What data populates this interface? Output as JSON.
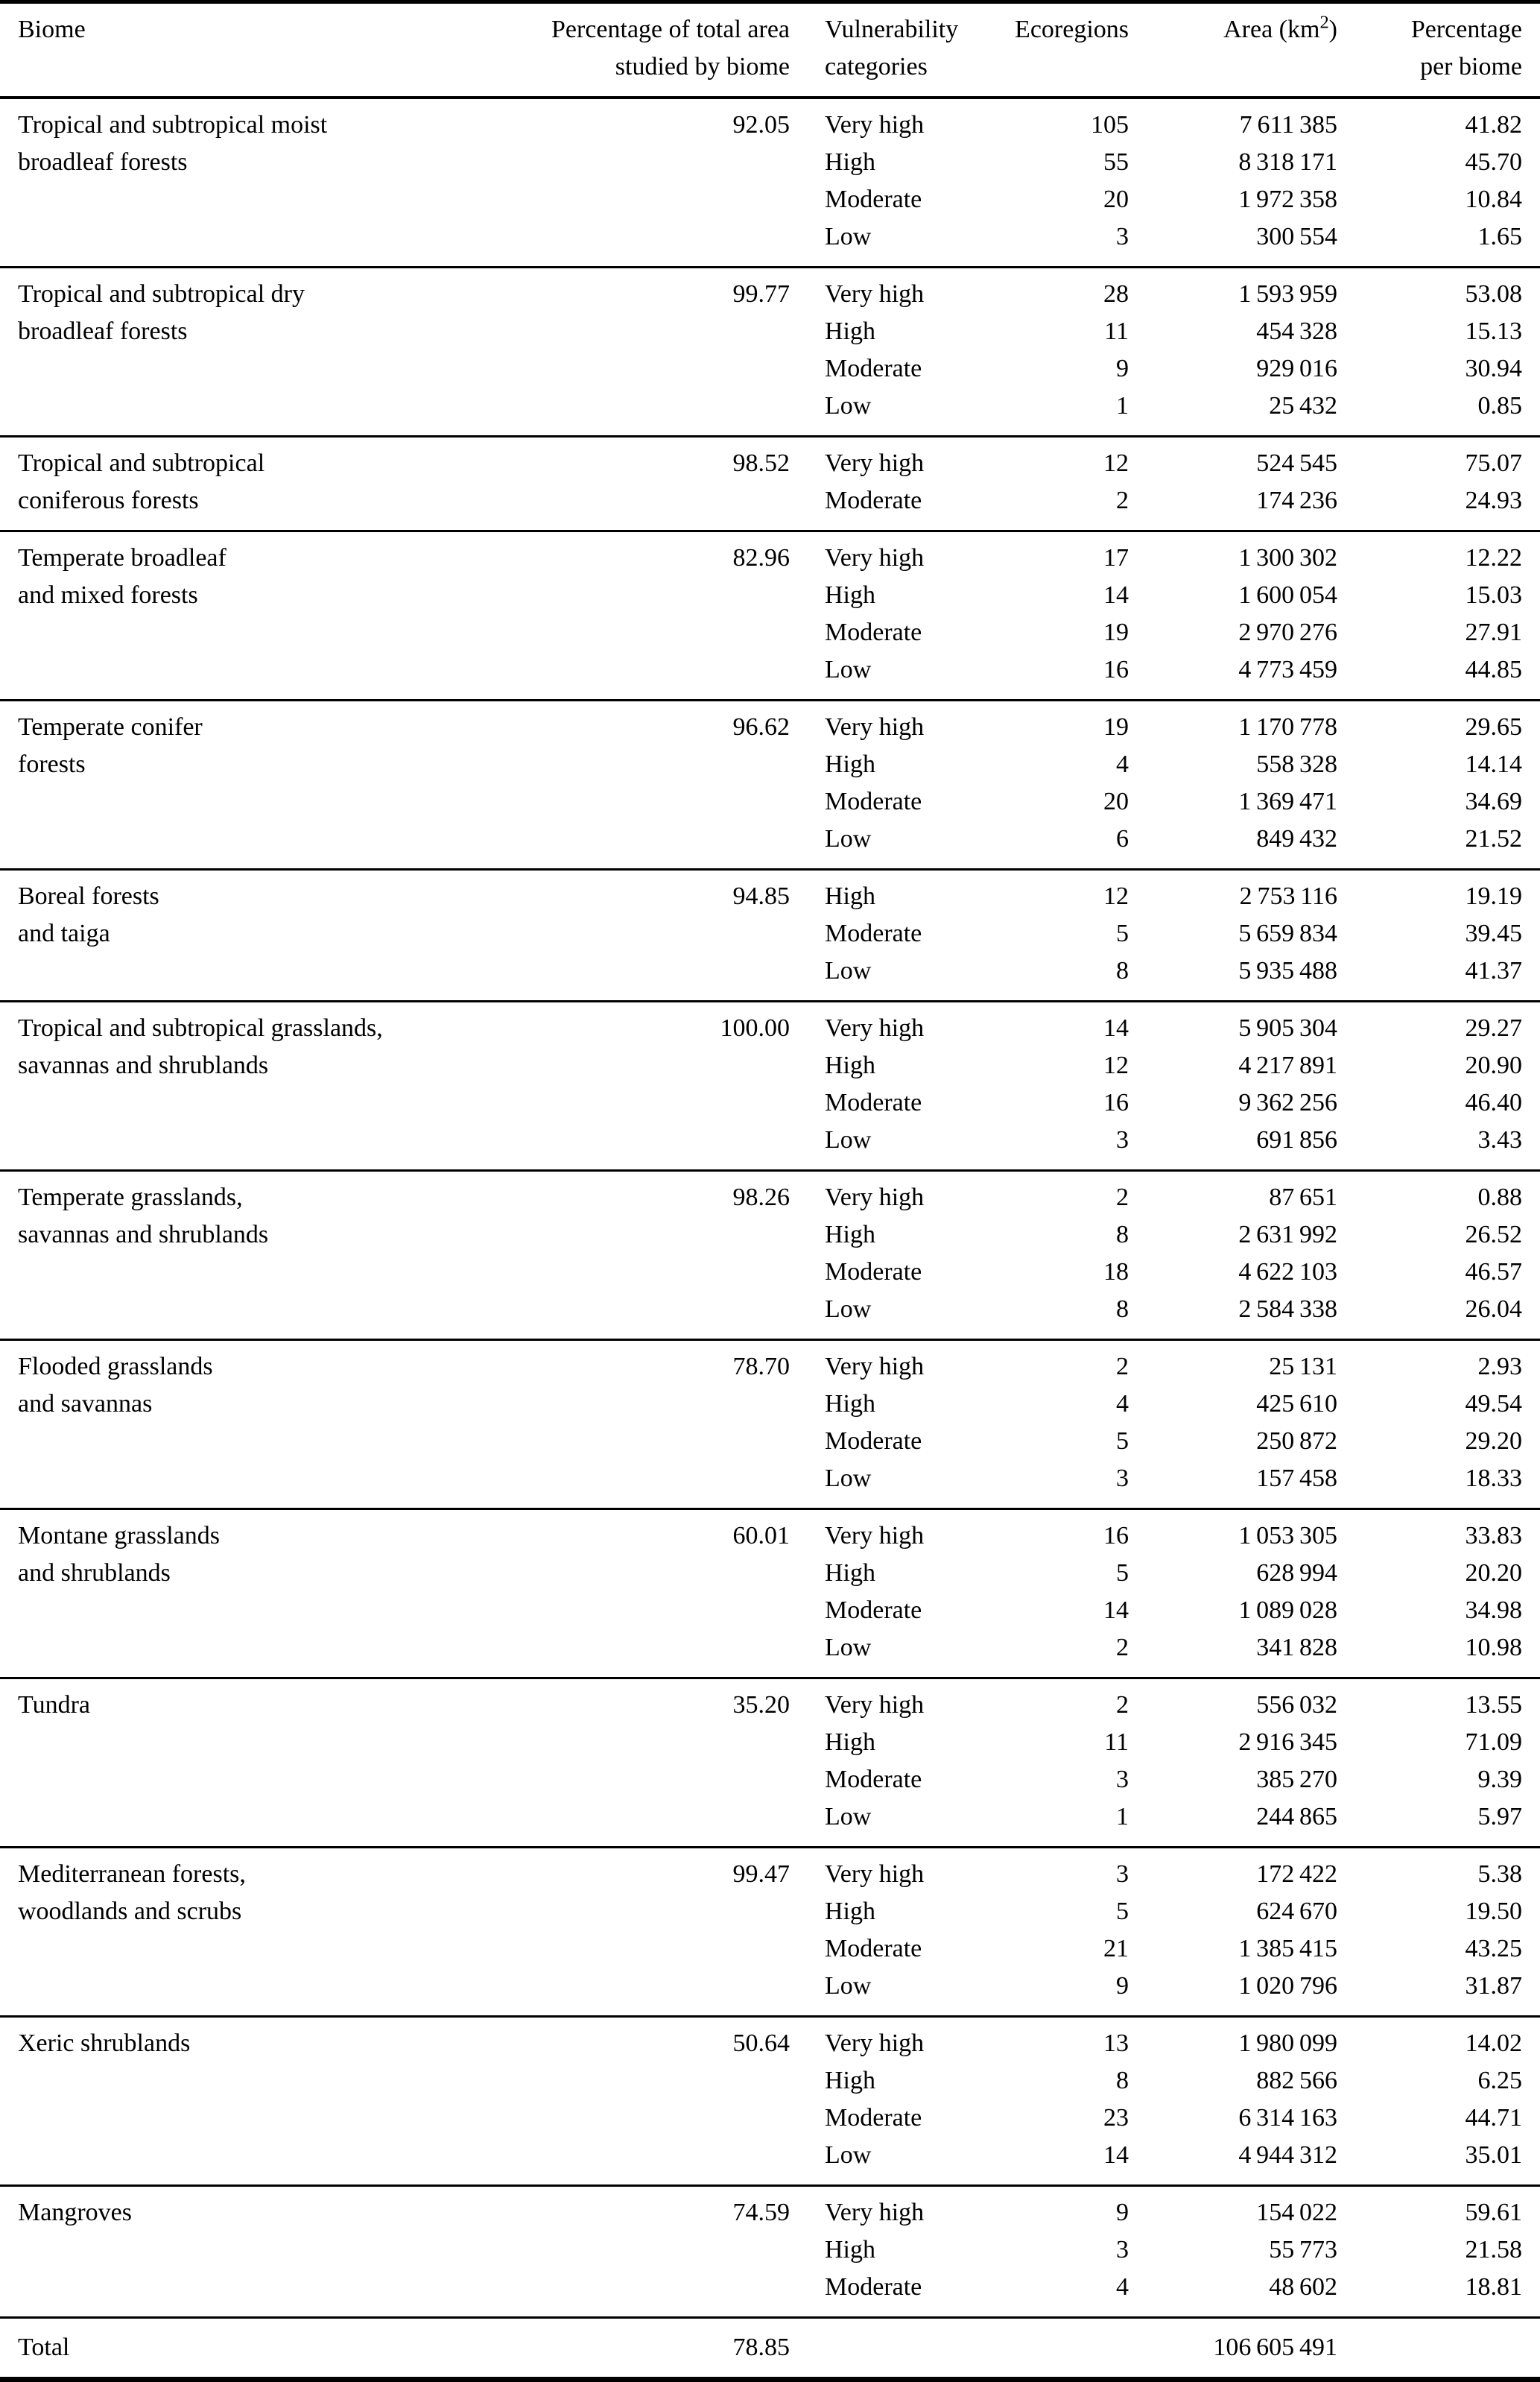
{
  "colors": {
    "text": "#000000",
    "background": "#ffffff",
    "rule": "#000000"
  },
  "table": {
    "headers": {
      "biome": "Biome",
      "pct_studied_line1": "Percentage of total area",
      "pct_studied_line2": "studied by biome",
      "vulnerability_line1": "Vulnerability",
      "vulnerability_line2": "categories",
      "ecoregions": "Ecoregions",
      "area_prefix": "Area (km",
      "area_sup": "2",
      "area_suffix": ")",
      "pct_biome_line1": "Percentage",
      "pct_biome_line2": "per biome"
    },
    "groups": [
      {
        "biome": [
          "Tropical and subtropical moist",
          "broadleaf forests"
        ],
        "pct_studied": "92.05",
        "rows": [
          {
            "category": "Very high",
            "ecoregions": "105",
            "area": "7 611 385",
            "pct": "41.82"
          },
          {
            "category": "High",
            "ecoregions": "55",
            "area": "8 318 171",
            "pct": "45.70"
          },
          {
            "category": "Moderate",
            "ecoregions": "20",
            "area": "1 972 358",
            "pct": "10.84"
          },
          {
            "category": "Low",
            "ecoregions": "3",
            "area": "300 554",
            "pct": "1.65"
          }
        ]
      },
      {
        "biome": [
          "Tropical and subtropical dry",
          "broadleaf forests"
        ],
        "pct_studied": "99.77",
        "rows": [
          {
            "category": "Very high",
            "ecoregions": "28",
            "area": "1 593 959",
            "pct": "53.08"
          },
          {
            "category": "High",
            "ecoregions": "11",
            "area": "454 328",
            "pct": "15.13"
          },
          {
            "category": "Moderate",
            "ecoregions": "9",
            "area": "929 016",
            "pct": "30.94"
          },
          {
            "category": "Low",
            "ecoregions": "1",
            "area": "25 432",
            "pct": "0.85"
          }
        ]
      },
      {
        "biome": [
          "Tropical and subtropical",
          "coniferous forests"
        ],
        "pct_studied": "98.52",
        "rows": [
          {
            "category": "Very high",
            "ecoregions": "12",
            "area": "524 545",
            "pct": "75.07"
          },
          {
            "category": "Moderate",
            "ecoregions": "2",
            "area": "174 236",
            "pct": "24.93"
          }
        ]
      },
      {
        "biome": [
          "Temperate broadleaf",
          "and mixed forests"
        ],
        "pct_studied": "82.96",
        "rows": [
          {
            "category": "Very high",
            "ecoregions": "17",
            "area": "1 300 302",
            "pct": "12.22"
          },
          {
            "category": "High",
            "ecoregions": "14",
            "area": "1 600 054",
            "pct": "15.03"
          },
          {
            "category": "Moderate",
            "ecoregions": "19",
            "area": "2 970 276",
            "pct": "27.91"
          },
          {
            "category": "Low",
            "ecoregions": "16",
            "area": "4 773 459",
            "pct": "44.85"
          }
        ]
      },
      {
        "biome": [
          "Temperate conifer",
          "forests"
        ],
        "pct_studied": "96.62",
        "rows": [
          {
            "category": "Very high",
            "ecoregions": "19",
            "area": "1 170 778",
            "pct": "29.65"
          },
          {
            "category": "High",
            "ecoregions": "4",
            "area": "558 328",
            "pct": "14.14"
          },
          {
            "category": "Moderate",
            "ecoregions": "20",
            "area": "1 369 471",
            "pct": "34.69"
          },
          {
            "category": "Low",
            "ecoregions": "6",
            "area": "849 432",
            "pct": "21.52"
          }
        ]
      },
      {
        "biome": [
          "Boreal forests",
          "and taiga"
        ],
        "pct_studied": "94.85",
        "rows": [
          {
            "category": "High",
            "ecoregions": "12",
            "area": "2 753 116",
            "pct": "19.19"
          },
          {
            "category": "Moderate",
            "ecoregions": "5",
            "area": "5 659 834",
            "pct": "39.45"
          },
          {
            "category": "Low",
            "ecoregions": "8",
            "area": "5 935 488",
            "pct": "41.37"
          }
        ]
      },
      {
        "biome": [
          "Tropical and subtropical grasslands,",
          "savannas and shrublands"
        ],
        "pct_studied": "100.00",
        "rows": [
          {
            "category": "Very high",
            "ecoregions": "14",
            "area": "5 905 304",
            "pct": "29.27"
          },
          {
            "category": "High",
            "ecoregions": "12",
            "area": "4 217 891",
            "pct": "20.90"
          },
          {
            "category": "Moderate",
            "ecoregions": "16",
            "area": "9 362 256",
            "pct": "46.40"
          },
          {
            "category": "Low",
            "ecoregions": "3",
            "area": "691 856",
            "pct": "3.43"
          }
        ]
      },
      {
        "biome": [
          "Temperate grasslands,",
          "savannas and shrublands"
        ],
        "pct_studied": "98.26",
        "rows": [
          {
            "category": "Very high",
            "ecoregions": "2",
            "area": "87 651",
            "pct": "0.88"
          },
          {
            "category": "High",
            "ecoregions": "8",
            "area": "2 631 992",
            "pct": "26.52"
          },
          {
            "category": "Moderate",
            "ecoregions": "18",
            "area": "4 622 103",
            "pct": "46.57"
          },
          {
            "category": "Low",
            "ecoregions": "8",
            "area": "2 584 338",
            "pct": "26.04"
          }
        ]
      },
      {
        "biome": [
          "Flooded grasslands",
          "and savannas"
        ],
        "pct_studied": "78.70",
        "rows": [
          {
            "category": "Very high",
            "ecoregions": "2",
            "area": "25 131",
            "pct": "2.93"
          },
          {
            "category": "High",
            "ecoregions": "4",
            "area": "425 610",
            "pct": "49.54"
          },
          {
            "category": "Moderate",
            "ecoregions": "5",
            "area": "250 872",
            "pct": "29.20"
          },
          {
            "category": "Low",
            "ecoregions": "3",
            "area": "157 458",
            "pct": "18.33"
          }
        ]
      },
      {
        "biome": [
          "Montane grasslands",
          "and shrublands"
        ],
        "pct_studied": "60.01",
        "rows": [
          {
            "category": "Very high",
            "ecoregions": "16",
            "area": "1 053 305",
            "pct": "33.83"
          },
          {
            "category": "High",
            "ecoregions": "5",
            "area": "628 994",
            "pct": "20.20"
          },
          {
            "category": "Moderate",
            "ecoregions": "14",
            "area": "1 089 028",
            "pct": "34.98"
          },
          {
            "category": "Low",
            "ecoregions": "2",
            "area": "341 828",
            "pct": "10.98"
          }
        ]
      },
      {
        "biome": [
          "Tundra"
        ],
        "pct_studied": "35.20",
        "rows": [
          {
            "category": "Very high",
            "ecoregions": "2",
            "area": "556 032",
            "pct": "13.55"
          },
          {
            "category": "High",
            "ecoregions": "11",
            "area": "2 916 345",
            "pct": "71.09"
          },
          {
            "category": "Moderate",
            "ecoregions": "3",
            "area": "385 270",
            "pct": "9.39"
          },
          {
            "category": "Low",
            "ecoregions": "1",
            "area": "244 865",
            "pct": "5.97"
          }
        ]
      },
      {
        "biome": [
          "Mediterranean forests,",
          "woodlands and scrubs"
        ],
        "pct_studied": "99.47",
        "rows": [
          {
            "category": "Very high",
            "ecoregions": "3",
            "area": "172 422",
            "pct": "5.38"
          },
          {
            "category": "High",
            "ecoregions": "5",
            "area": "624 670",
            "pct": "19.50"
          },
          {
            "category": "Moderate",
            "ecoregions": "21",
            "area": "1 385 415",
            "pct": "43.25"
          },
          {
            "category": "Low",
            "ecoregions": "9",
            "area": "1 020 796",
            "pct": "31.87"
          }
        ]
      },
      {
        "biome": [
          "Xeric shrublands"
        ],
        "pct_studied": "50.64",
        "rows": [
          {
            "category": "Very high",
            "ecoregions": "13",
            "area": "1 980 099",
            "pct": "14.02"
          },
          {
            "category": "High",
            "ecoregions": "8",
            "area": "882 566",
            "pct": "6.25"
          },
          {
            "category": "Moderate",
            "ecoregions": "23",
            "area": "6 314 163",
            "pct": "44.71"
          },
          {
            "category": "Low",
            "ecoregions": "14",
            "area": "4 944 312",
            "pct": "35.01"
          }
        ]
      },
      {
        "biome": [
          "Mangroves"
        ],
        "pct_studied": "74.59",
        "rows": [
          {
            "category": "Very high",
            "ecoregions": "9",
            "area": "154 022",
            "pct": "59.61"
          },
          {
            "category": "High",
            "ecoregions": "3",
            "area": "55 773",
            "pct": "21.58"
          },
          {
            "category": "Moderate",
            "ecoregions": "4",
            "area": "48 602",
            "pct": "18.81"
          }
        ]
      }
    ],
    "total": {
      "label": "Total",
      "pct_studied": "78.85",
      "area": "106 605 491"
    }
  }
}
